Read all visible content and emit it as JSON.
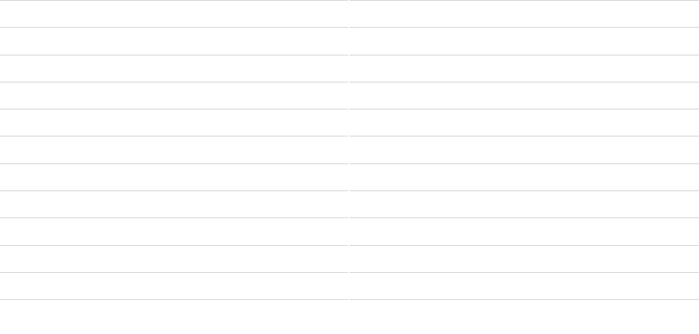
{
  "table": {
    "rows": [
      [
        "",
        ""
      ],
      [
        "",
        ""
      ],
      [
        "",
        ""
      ],
      [
        "",
        ""
      ],
      [
        "",
        ""
      ],
      [
        "",
        ""
      ],
      [
        "",
        ""
      ],
      [
        "",
        ""
      ],
      [
        "",
        ""
      ],
      [
        "",
        ""
      ],
      [
        "",
        ""
      ]
    ]
  }
}
